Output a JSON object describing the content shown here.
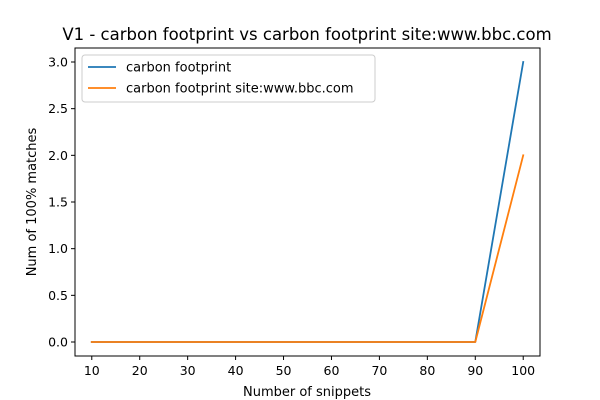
{
  "chart_data": {
    "type": "line",
    "title": "V1 - carbon footprint vs carbon footprint site:www.bbc.com",
    "xlabel": "Number of snippets",
    "ylabel": "Num of 100% matches",
    "x": [
      10,
      20,
      30,
      40,
      50,
      60,
      70,
      80,
      90,
      100
    ],
    "xticks": [
      "10",
      "20",
      "30",
      "40",
      "50",
      "60",
      "70",
      "80",
      "90",
      "100"
    ],
    "yticks": [
      "0.0",
      "0.5",
      "1.0",
      "1.5",
      "2.0",
      "2.5",
      "3.0"
    ],
    "xlim": [
      6.5,
      103.5
    ],
    "ylim": [
      -0.15,
      3.15
    ],
    "grid": false,
    "legend_position": "top-left",
    "series": [
      {
        "name": "carbon footprint",
        "color": "#1f77b4",
        "values": [
          0,
          0,
          0,
          0,
          0,
          0,
          0,
          0,
          0,
          3
        ]
      },
      {
        "name": "carbon footprint site:www.bbc.com",
        "color": "#ff7f0e",
        "values": [
          0,
          0,
          0,
          0,
          0,
          0,
          0,
          0,
          0,
          2
        ]
      }
    ]
  }
}
